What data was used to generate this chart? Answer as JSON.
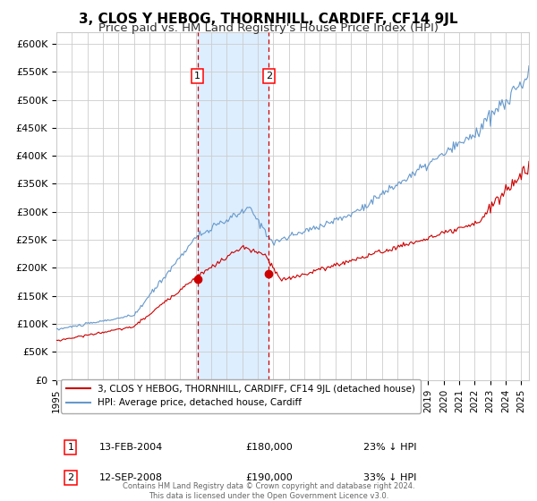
{
  "title": "3, CLOS Y HEBOG, THORNHILL, CARDIFF, CF14 9JL",
  "subtitle": "Price paid vs. HM Land Registry's House Price Index (HPI)",
  "xlim": [
    1995.0,
    2025.5
  ],
  "ylim": [
    0,
    620000
  ],
  "yticks": [
    0,
    50000,
    100000,
    150000,
    200000,
    250000,
    300000,
    350000,
    400000,
    450000,
    500000,
    550000,
    600000
  ],
  "ytick_labels": [
    "£0",
    "£50K",
    "£100K",
    "£150K",
    "£200K",
    "£250K",
    "£300K",
    "£350K",
    "£400K",
    "£450K",
    "£500K",
    "£550K",
    "£600K"
  ],
  "xticks": [
    1995,
    1996,
    1997,
    1998,
    1999,
    2000,
    2001,
    2002,
    2003,
    2004,
    2005,
    2006,
    2007,
    2008,
    2009,
    2010,
    2011,
    2012,
    2013,
    2014,
    2015,
    2016,
    2017,
    2018,
    2019,
    2020,
    2021,
    2022,
    2023,
    2024,
    2025
  ],
  "sale1_x": 2004.11,
  "sale1_y": 180000,
  "sale1_label": "1",
  "sale1_date": "13-FEB-2004",
  "sale1_price": "£180,000",
  "sale1_hpi": "23% ↓ HPI",
  "sale2_x": 2008.71,
  "sale2_y": 190000,
  "sale2_label": "2",
  "sale2_date": "12-SEP-2008",
  "sale2_price": "£190,000",
  "sale2_hpi": "33% ↓ HPI",
  "shade_x1": 2004.11,
  "shade_x2": 2008.71,
  "red_line_color": "#cc0000",
  "blue_line_color": "#6699cc",
  "shade_color": "#ddeeff",
  "dashed_line_color": "#cc0000",
  "grid_color": "#cccccc",
  "background_color": "#ffffff",
  "legend_house_label": "3, CLOS Y HEBOG, THORNHILL, CARDIFF, CF14 9JL (detached house)",
  "legend_hpi_label": "HPI: Average price, detached house, Cardiff",
  "footer_text": "Contains HM Land Registry data © Crown copyright and database right 2024.\nThis data is licensed under the Open Government Licence v3.0.",
  "title_fontsize": 11,
  "subtitle_fontsize": 9.5,
  "label_fontsize": 8.5,
  "tick_fontsize": 8.0
}
